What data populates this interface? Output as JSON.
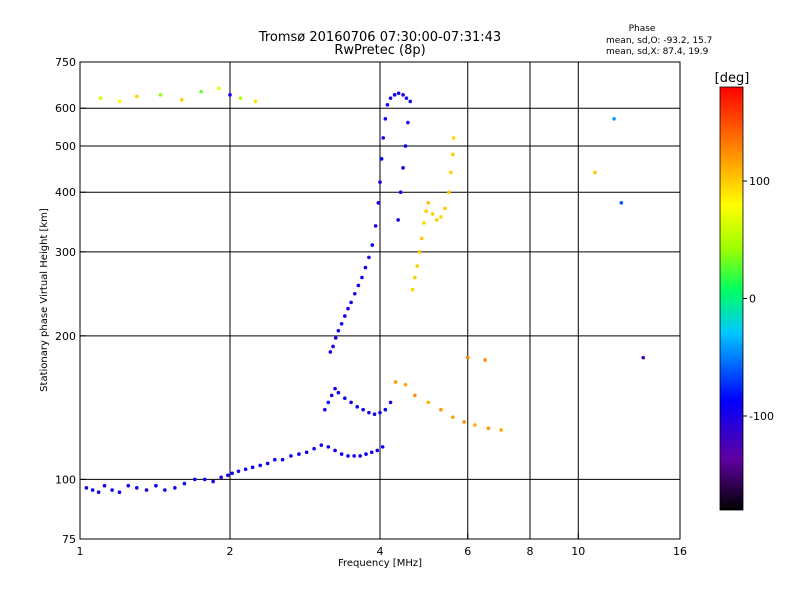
{
  "chart_data": {
    "type": "scatter",
    "title": "Tromsø 20160706 07:30:00-07:31:43",
    "subtitle": "RwPretec (8p)",
    "xlabel": "Frequency [MHz]",
    "ylabel": "Stationary phase Virtual Height [km]",
    "x_scale": "log",
    "y_scale": "log",
    "xlim": [
      1,
      16
    ],
    "ylim": [
      75,
      750
    ],
    "x_ticks": [
      1,
      2,
      4,
      6,
      8,
      10,
      16
    ],
    "x_tick_labels": [
      "1",
      "2",
      "4",
      "6",
      "8",
      "10",
      "16"
    ],
    "y_ticks": [
      75,
      100,
      200,
      300,
      400,
      500,
      600,
      750
    ],
    "y_tick_labels": [
      "75",
      "100",
      "200",
      "300",
      "400",
      "500",
      "600",
      "750"
    ],
    "x_gridlines": [
      2,
      4,
      6,
      8,
      10
    ],
    "y_gridlines": [
      100,
      200,
      300,
      400,
      500,
      600
    ],
    "grid": true,
    "phase_stats": {
      "heading": "Phase",
      "line_o": "mean, sd,O: -93.2, 15.7",
      "line_x": "mean, sd,X:  87.4, 19.9"
    },
    "colorbar": {
      "label": "[deg]",
      "range": [
        -180,
        180
      ],
      "ticks": [
        100,
        0,
        -100
      ],
      "tick_labels": [
        "100",
        "0",
        "-100"
      ]
    },
    "series": [
      {
        "points": [
          [
            1.03,
            96,
            -95
          ],
          [
            1.06,
            95,
            -90
          ],
          [
            1.09,
            94,
            -100
          ],
          [
            1.12,
            97,
            -95
          ],
          [
            1.16,
            95,
            -90
          ],
          [
            1.2,
            94,
            -100
          ],
          [
            1.25,
            97,
            -95
          ],
          [
            1.3,
            96,
            -92
          ],
          [
            1.36,
            95,
            -98
          ],
          [
            1.42,
            97,
            -90
          ],
          [
            1.48,
            95,
            -95
          ],
          [
            1.55,
            96,
            -100
          ],
          [
            1.62,
            98,
            -92
          ],
          [
            1.7,
            100,
            -95
          ],
          [
            1.78,
            100,
            -90
          ],
          [
            1.85,
            99,
            -98
          ],
          [
            1.92,
            101,
            -95
          ],
          [
            1.98,
            102,
            -92
          ],
          [
            2.02,
            103,
            -100
          ],
          [
            2.08,
            104,
            -95
          ],
          [
            2.15,
            105,
            -90
          ],
          [
            2.22,
            106,
            -95
          ],
          [
            2.3,
            107,
            -98
          ],
          [
            2.38,
            108,
            -92
          ],
          [
            2.46,
            110,
            -95
          ],
          [
            2.55,
            110,
            -100
          ],
          [
            2.65,
            112,
            -90
          ],
          [
            2.75,
            113,
            -95
          ],
          [
            2.85,
            114,
            -98
          ],
          [
            2.95,
            116,
            -92
          ],
          [
            3.05,
            118,
            -95
          ],
          [
            3.15,
            117,
            -90
          ],
          [
            3.25,
            115,
            -100
          ],
          [
            3.35,
            113,
            -95
          ],
          [
            3.45,
            112,
            -92
          ],
          [
            3.55,
            112,
            -98
          ],
          [
            3.65,
            112,
            -95
          ],
          [
            3.75,
            113,
            -90
          ],
          [
            3.85,
            114,
            -95
          ],
          [
            3.95,
            115,
            -100
          ],
          [
            4.05,
            117,
            -92
          ]
        ]
      },
      {
        "points": [
          [
            3.1,
            140,
            -95
          ],
          [
            3.15,
            145,
            -90
          ],
          [
            3.2,
            150,
            -100
          ],
          [
            3.25,
            155,
            -95
          ],
          [
            3.3,
            152,
            -92
          ],
          [
            3.4,
            148,
            -98
          ],
          [
            3.5,
            145,
            -95
          ],
          [
            3.6,
            142,
            -90
          ],
          [
            3.7,
            140,
            -95
          ],
          [
            3.8,
            138,
            -100
          ],
          [
            3.9,
            137,
            -92
          ],
          [
            4.0,
            138,
            -95
          ],
          [
            4.1,
            140,
            -90
          ],
          [
            4.2,
            145,
            -98
          ]
        ]
      },
      {
        "points": [
          [
            3.18,
            185,
            -95
          ],
          [
            3.22,
            190,
            -100
          ],
          [
            3.26,
            198,
            -92
          ],
          [
            3.3,
            205,
            -95
          ],
          [
            3.35,
            212,
            -90
          ],
          [
            3.4,
            220,
            -98
          ],
          [
            3.45,
            228,
            -95
          ],
          [
            3.5,
            235,
            -92
          ],
          [
            3.56,
            245,
            -100
          ],
          [
            3.62,
            255,
            -95
          ],
          [
            3.68,
            265,
            -90
          ],
          [
            3.74,
            278,
            -95
          ],
          [
            3.8,
            292,
            -98
          ],
          [
            3.86,
            310,
            -92
          ],
          [
            3.92,
            340,
            -95
          ],
          [
            3.97,
            380,
            -100
          ],
          [
            4.0,
            420,
            -95
          ],
          [
            4.03,
            470,
            -90
          ],
          [
            4.06,
            520,
            -95
          ],
          [
            4.1,
            570,
            -98
          ],
          [
            4.14,
            610,
            -92
          ],
          [
            4.2,
            630,
            -95
          ],
          [
            4.28,
            640,
            -90
          ],
          [
            4.36,
            645,
            -100
          ],
          [
            4.45,
            640,
            -95
          ],
          [
            4.52,
            630,
            -92
          ],
          [
            4.6,
            620,
            -98
          ],
          [
            4.55,
            560,
            -95
          ],
          [
            4.5,
            500,
            -90
          ],
          [
            4.45,
            450,
            -95
          ],
          [
            4.4,
            400,
            -100
          ],
          [
            4.35,
            350,
            -95
          ]
        ]
      },
      {
        "points": [
          [
            4.65,
            250,
            95
          ],
          [
            4.7,
            265,
            100
          ],
          [
            4.75,
            280,
            98
          ],
          [
            4.8,
            300,
            102
          ],
          [
            4.85,
            320,
            100
          ],
          [
            4.9,
            345,
            95
          ],
          [
            4.95,
            365,
            100
          ],
          [
            5.0,
            380,
            105
          ],
          [
            5.1,
            360,
            98
          ],
          [
            5.2,
            350,
            100
          ],
          [
            5.3,
            355,
            95
          ],
          [
            5.4,
            370,
            100
          ],
          [
            5.5,
            400,
            102
          ],
          [
            5.55,
            440,
            98
          ],
          [
            5.6,
            480,
            100
          ],
          [
            5.62,
            520,
            95
          ]
        ]
      },
      {
        "points": [
          [
            4.3,
            160,
            120
          ],
          [
            4.5,
            158,
            115
          ],
          [
            4.7,
            150,
            125
          ],
          [
            5.0,
            145,
            110
          ],
          [
            5.3,
            140,
            120
          ],
          [
            5.6,
            135,
            115
          ],
          [
            5.9,
            132,
            125
          ],
          [
            6.2,
            130,
            110
          ],
          [
            6.6,
            128,
            120
          ],
          [
            7.0,
            127,
            115
          ],
          [
            6.0,
            180,
            130
          ],
          [
            6.5,
            178,
            125
          ]
        ]
      },
      {
        "points": [
          [
            1.1,
            630,
            60
          ],
          [
            1.2,
            620,
            80
          ],
          [
            1.3,
            635,
            95
          ],
          [
            1.45,
            640,
            40
          ],
          [
            1.6,
            625,
            100
          ],
          [
            1.75,
            650,
            30
          ],
          [
            1.9,
            660,
            70
          ],
          [
            2.0,
            640,
            -95
          ],
          [
            2.1,
            630,
            50
          ],
          [
            2.25,
            620,
            90
          ],
          [
            10.8,
            440,
            100
          ],
          [
            11.8,
            570,
            -40
          ],
          [
            12.2,
            380,
            -60
          ],
          [
            13.5,
            180,
            -120
          ]
        ]
      }
    ]
  }
}
